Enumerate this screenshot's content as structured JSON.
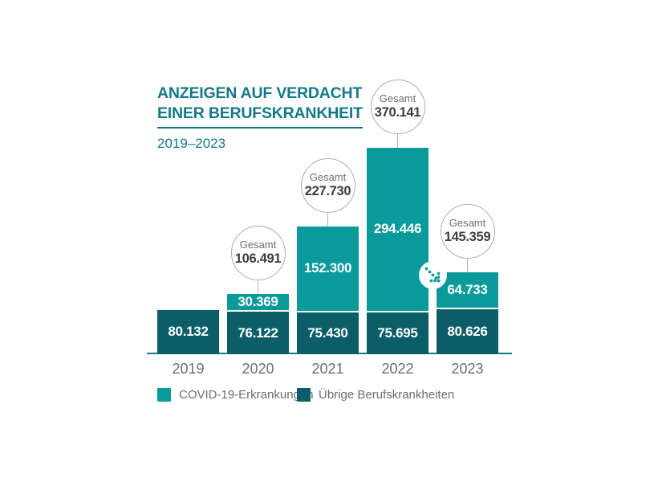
{
  "header": {
    "title_line1": "ANZEIGEN AUF VERDACHT",
    "title_line2": "EINER BERUFSKRANKHEIT",
    "subtitle": "2019–2023"
  },
  "chart_data": {
    "type": "bar",
    "stacked": true,
    "title": "Anzeigen auf Verdacht einer Berufskrankheit 2019–2023",
    "categories": [
      "2019",
      "2020",
      "2021",
      "2022",
      "2023"
    ],
    "series": [
      {
        "name": "COVID-19-Erkrankungen",
        "color": "#0b9a9b",
        "values": [
          0,
          30369,
          152300,
          294446,
          64733
        ],
        "value_labels": [
          "",
          "30.369",
          "152.300",
          "294.446",
          "64.733"
        ]
      },
      {
        "name": "Übrige Berufskrankheiten",
        "color": "#0b5e68",
        "values": [
          80132,
          76122,
          75430,
          75695,
          80626
        ],
        "value_labels": [
          "80.132",
          "76.122",
          "75.430",
          "75.695",
          "80.626"
        ]
      }
    ],
    "totals": {
      "prefix": "Gesamt",
      "values": [
        null,
        106491,
        227730,
        370141,
        145359
      ],
      "value_labels": [
        null,
        "106.491",
        "227.730",
        "370.141",
        "145.359"
      ]
    },
    "annotations": [
      {
        "type": "decrease-arrow",
        "between": [
          "2022",
          "2023"
        ]
      }
    ],
    "ylim": [
      0,
      380000
    ],
    "grid": false,
    "legend_position": "bottom"
  },
  "legend": {
    "items": [
      {
        "label": "COVID-19-Erkrankungen",
        "color": "#0b9a9b"
      },
      {
        "label": "Übrige Berufskrankheiten",
        "color": "#0b5e68"
      }
    ]
  },
  "colors": {
    "accent_teal": "#13798a",
    "bar_light": "#0b9a9b",
    "bar_dark": "#0b5e68",
    "axis_line": "#15788a",
    "text_gray": "#6e6e6e",
    "circle_number": "#3f3e3e",
    "circle_border": "#ababab",
    "background": "#ffffff"
  }
}
